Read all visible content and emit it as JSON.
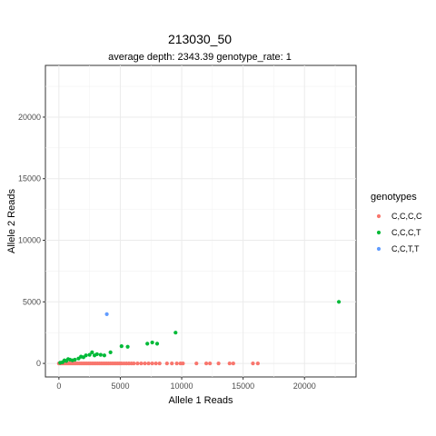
{
  "chart_data": {
    "type": "scatter",
    "title": "213030_50",
    "subtitle": "average depth:  2343.39  genotype_rate:  1",
    "xlabel": "Allele 1 Reads",
    "ylabel": "Allele 2 Reads",
    "xlim": [
      -1100,
      24200
    ],
    "ylim": [
      -1100,
      24200
    ],
    "xticks": [
      0,
      5000,
      10000,
      15000,
      20000
    ],
    "yticks": [
      0,
      5000,
      10000,
      15000,
      20000
    ],
    "grid": true,
    "legend": {
      "title": "genotypes",
      "position": "right"
    },
    "series": [
      {
        "name": "C,C,C,C",
        "color": "#F8766D",
        "points": [
          [
            0,
            0
          ],
          [
            150,
            0
          ],
          [
            300,
            0
          ],
          [
            450,
            0
          ],
          [
            600,
            0
          ],
          [
            750,
            0
          ],
          [
            900,
            0
          ],
          [
            1050,
            0
          ],
          [
            1200,
            0
          ],
          [
            1350,
            0
          ],
          [
            1500,
            0
          ],
          [
            1650,
            0
          ],
          [
            1800,
            0
          ],
          [
            1950,
            0
          ],
          [
            2100,
            0
          ],
          [
            2250,
            0
          ],
          [
            2400,
            0
          ],
          [
            2550,
            0
          ],
          [
            2700,
            0
          ],
          [
            2850,
            0
          ],
          [
            3000,
            0
          ],
          [
            3150,
            0
          ],
          [
            3300,
            0
          ],
          [
            3450,
            0
          ],
          [
            3600,
            0
          ],
          [
            3750,
            0
          ],
          [
            3900,
            0
          ],
          [
            4050,
            0
          ],
          [
            4200,
            0
          ],
          [
            4350,
            0
          ],
          [
            4500,
            0
          ],
          [
            4650,
            0
          ],
          [
            4800,
            0
          ],
          [
            4950,
            0
          ],
          [
            5100,
            0
          ],
          [
            5300,
            0
          ],
          [
            5500,
            0
          ],
          [
            5700,
            0
          ],
          [
            5900,
            0
          ],
          [
            6100,
            0
          ],
          [
            6400,
            0
          ],
          [
            6700,
            0
          ],
          [
            7000,
            0
          ],
          [
            7300,
            0
          ],
          [
            7600,
            0
          ],
          [
            7900,
            0
          ],
          [
            8200,
            0
          ],
          [
            8800,
            0
          ],
          [
            9200,
            0
          ],
          [
            9600,
            0
          ],
          [
            9900,
            0
          ],
          [
            10100,
            0
          ],
          [
            11200,
            0
          ],
          [
            12000,
            0
          ],
          [
            12300,
            0
          ],
          [
            13000,
            0
          ],
          [
            13900,
            0
          ],
          [
            14200,
            0
          ],
          [
            15800,
            0
          ],
          [
            16200,
            0
          ]
        ]
      },
      {
        "name": "C,C,C,T",
        "color": "#00BA38",
        "points": [
          [
            100,
            50
          ],
          [
            300,
            100
          ],
          [
            450,
            250
          ],
          [
            600,
            200
          ],
          [
            750,
            350
          ],
          [
            900,
            300
          ],
          [
            1100,
            250
          ],
          [
            1300,
            300
          ],
          [
            1600,
            400
          ],
          [
            1800,
            550
          ],
          [
            2000,
            500
          ],
          [
            2200,
            650
          ],
          [
            2500,
            700
          ],
          [
            2700,
            900
          ],
          [
            2900,
            650
          ],
          [
            3100,
            750
          ],
          [
            3400,
            700
          ],
          [
            3700,
            650
          ],
          [
            4200,
            900
          ],
          [
            5100,
            1400
          ],
          [
            5600,
            1350
          ],
          [
            7200,
            1600
          ],
          [
            7600,
            1700
          ],
          [
            8000,
            1600
          ],
          [
            9500,
            2500
          ],
          [
            22800,
            5000
          ]
        ]
      },
      {
        "name": "C,C,T,T",
        "color": "#619CFF",
        "points": [
          [
            3900,
            4000
          ]
        ]
      }
    ]
  }
}
